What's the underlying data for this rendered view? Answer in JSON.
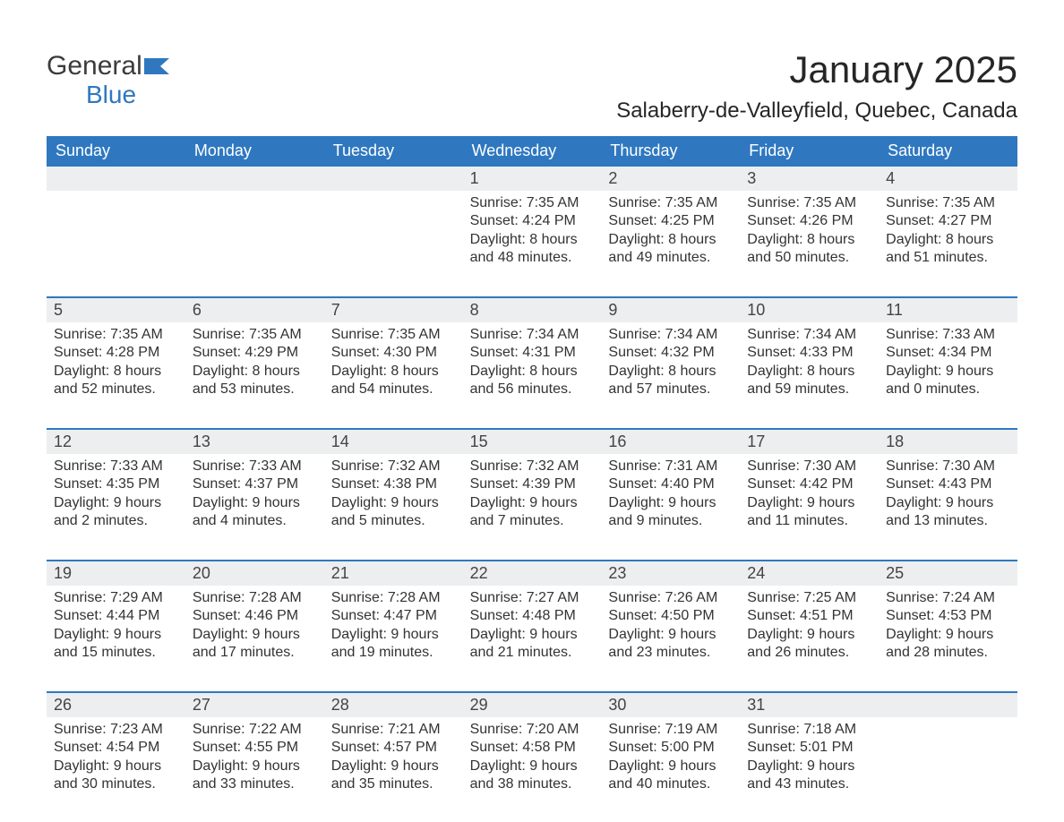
{
  "logo": {
    "word1": "General",
    "word2": "Blue",
    "flag_color": "#2f78c0",
    "text_color": "#3b3b3b"
  },
  "title": "January 2025",
  "location": "Salaberry-de-Valleyfield, Quebec, Canada",
  "colors": {
    "header_bg": "#2f78c0",
    "row_line": "#2f78c0",
    "daynum_bg": "#eceeef",
    "page_bg": "#ffffff",
    "text": "#333333",
    "header_text": "#ffffff"
  },
  "day_headers": [
    "Sunday",
    "Monday",
    "Tuesday",
    "Wednesday",
    "Thursday",
    "Friday",
    "Saturday"
  ],
  "weeks": [
    [
      null,
      null,
      null,
      {
        "n": "1",
        "sunrise": "Sunrise: 7:35 AM",
        "sunset": "Sunset: 4:24 PM",
        "d1": "Daylight: 8 hours",
        "d2": "and 48 minutes."
      },
      {
        "n": "2",
        "sunrise": "Sunrise: 7:35 AM",
        "sunset": "Sunset: 4:25 PM",
        "d1": "Daylight: 8 hours",
        "d2": "and 49 minutes."
      },
      {
        "n": "3",
        "sunrise": "Sunrise: 7:35 AM",
        "sunset": "Sunset: 4:26 PM",
        "d1": "Daylight: 8 hours",
        "d2": "and 50 minutes."
      },
      {
        "n": "4",
        "sunrise": "Sunrise: 7:35 AM",
        "sunset": "Sunset: 4:27 PM",
        "d1": "Daylight: 8 hours",
        "d2": "and 51 minutes."
      }
    ],
    [
      {
        "n": "5",
        "sunrise": "Sunrise: 7:35 AM",
        "sunset": "Sunset: 4:28 PM",
        "d1": "Daylight: 8 hours",
        "d2": "and 52 minutes."
      },
      {
        "n": "6",
        "sunrise": "Sunrise: 7:35 AM",
        "sunset": "Sunset: 4:29 PM",
        "d1": "Daylight: 8 hours",
        "d2": "and 53 minutes."
      },
      {
        "n": "7",
        "sunrise": "Sunrise: 7:35 AM",
        "sunset": "Sunset: 4:30 PM",
        "d1": "Daylight: 8 hours",
        "d2": "and 54 minutes."
      },
      {
        "n": "8",
        "sunrise": "Sunrise: 7:34 AM",
        "sunset": "Sunset: 4:31 PM",
        "d1": "Daylight: 8 hours",
        "d2": "and 56 minutes."
      },
      {
        "n": "9",
        "sunrise": "Sunrise: 7:34 AM",
        "sunset": "Sunset: 4:32 PM",
        "d1": "Daylight: 8 hours",
        "d2": "and 57 minutes."
      },
      {
        "n": "10",
        "sunrise": "Sunrise: 7:34 AM",
        "sunset": "Sunset: 4:33 PM",
        "d1": "Daylight: 8 hours",
        "d2": "and 59 minutes."
      },
      {
        "n": "11",
        "sunrise": "Sunrise: 7:33 AM",
        "sunset": "Sunset: 4:34 PM",
        "d1": "Daylight: 9 hours",
        "d2": "and 0 minutes."
      }
    ],
    [
      {
        "n": "12",
        "sunrise": "Sunrise: 7:33 AM",
        "sunset": "Sunset: 4:35 PM",
        "d1": "Daylight: 9 hours",
        "d2": "and 2 minutes."
      },
      {
        "n": "13",
        "sunrise": "Sunrise: 7:33 AM",
        "sunset": "Sunset: 4:37 PM",
        "d1": "Daylight: 9 hours",
        "d2": "and 4 minutes."
      },
      {
        "n": "14",
        "sunrise": "Sunrise: 7:32 AM",
        "sunset": "Sunset: 4:38 PM",
        "d1": "Daylight: 9 hours",
        "d2": "and 5 minutes."
      },
      {
        "n": "15",
        "sunrise": "Sunrise: 7:32 AM",
        "sunset": "Sunset: 4:39 PM",
        "d1": "Daylight: 9 hours",
        "d2": "and 7 minutes."
      },
      {
        "n": "16",
        "sunrise": "Sunrise: 7:31 AM",
        "sunset": "Sunset: 4:40 PM",
        "d1": "Daylight: 9 hours",
        "d2": "and 9 minutes."
      },
      {
        "n": "17",
        "sunrise": "Sunrise: 7:30 AM",
        "sunset": "Sunset: 4:42 PM",
        "d1": "Daylight: 9 hours",
        "d2": "and 11 minutes."
      },
      {
        "n": "18",
        "sunrise": "Sunrise: 7:30 AM",
        "sunset": "Sunset: 4:43 PM",
        "d1": "Daylight: 9 hours",
        "d2": "and 13 minutes."
      }
    ],
    [
      {
        "n": "19",
        "sunrise": "Sunrise: 7:29 AM",
        "sunset": "Sunset: 4:44 PM",
        "d1": "Daylight: 9 hours",
        "d2": "and 15 minutes."
      },
      {
        "n": "20",
        "sunrise": "Sunrise: 7:28 AM",
        "sunset": "Sunset: 4:46 PM",
        "d1": "Daylight: 9 hours",
        "d2": "and 17 minutes."
      },
      {
        "n": "21",
        "sunrise": "Sunrise: 7:28 AM",
        "sunset": "Sunset: 4:47 PM",
        "d1": "Daylight: 9 hours",
        "d2": "and 19 minutes."
      },
      {
        "n": "22",
        "sunrise": "Sunrise: 7:27 AM",
        "sunset": "Sunset: 4:48 PM",
        "d1": "Daylight: 9 hours",
        "d2": "and 21 minutes."
      },
      {
        "n": "23",
        "sunrise": "Sunrise: 7:26 AM",
        "sunset": "Sunset: 4:50 PM",
        "d1": "Daylight: 9 hours",
        "d2": "and 23 minutes."
      },
      {
        "n": "24",
        "sunrise": "Sunrise: 7:25 AM",
        "sunset": "Sunset: 4:51 PM",
        "d1": "Daylight: 9 hours",
        "d2": "and 26 minutes."
      },
      {
        "n": "25",
        "sunrise": "Sunrise: 7:24 AM",
        "sunset": "Sunset: 4:53 PM",
        "d1": "Daylight: 9 hours",
        "d2": "and 28 minutes."
      }
    ],
    [
      {
        "n": "26",
        "sunrise": "Sunrise: 7:23 AM",
        "sunset": "Sunset: 4:54 PM",
        "d1": "Daylight: 9 hours",
        "d2": "and 30 minutes."
      },
      {
        "n": "27",
        "sunrise": "Sunrise: 7:22 AM",
        "sunset": "Sunset: 4:55 PM",
        "d1": "Daylight: 9 hours",
        "d2": "and 33 minutes."
      },
      {
        "n": "28",
        "sunrise": "Sunrise: 7:21 AM",
        "sunset": "Sunset: 4:57 PM",
        "d1": "Daylight: 9 hours",
        "d2": "and 35 minutes."
      },
      {
        "n": "29",
        "sunrise": "Sunrise: 7:20 AM",
        "sunset": "Sunset: 4:58 PM",
        "d1": "Daylight: 9 hours",
        "d2": "and 38 minutes."
      },
      {
        "n": "30",
        "sunrise": "Sunrise: 7:19 AM",
        "sunset": "Sunset: 5:00 PM",
        "d1": "Daylight: 9 hours",
        "d2": "and 40 minutes."
      },
      {
        "n": "31",
        "sunrise": "Sunrise: 7:18 AM",
        "sunset": "Sunset: 5:01 PM",
        "d1": "Daylight: 9 hours",
        "d2": "and 43 minutes."
      },
      null
    ]
  ]
}
